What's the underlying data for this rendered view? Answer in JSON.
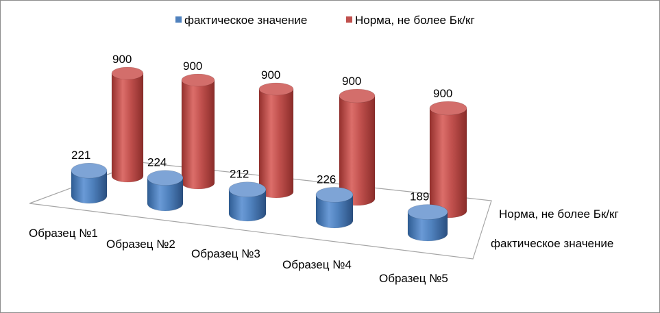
{
  "chart_data": {
    "type": "bar",
    "style": "3d-cylinder",
    "categories": [
      "Образец №1",
      "Образец №2",
      "Образец №3",
      "Образец №4",
      "Образец №5"
    ],
    "series": [
      {
        "name": "фактическое значение",
        "values": [
          221,
          224,
          212,
          226,
          189
        ],
        "labels": [
          "221",
          "224",
          "212",
          "226",
          "189"
        ],
        "color": "#4f81bd"
      },
      {
        "name": "Норма, не более Бк/кг",
        "values": [
          900,
          900,
          900,
          900,
          900
        ],
        "labels": [
          "900",
          "900",
          "900",
          "900",
          "900"
        ],
        "color": "#c0504d"
      }
    ],
    "depth_labels": [
      "Норма, не более Бк/кг",
      "фактическое значение"
    ],
    "legend": {
      "position": "top",
      "items": [
        "фактическое значение",
        "Норма, не более Бк/кг"
      ]
    },
    "ylim": [
      0,
      1000
    ],
    "grid": false
  }
}
